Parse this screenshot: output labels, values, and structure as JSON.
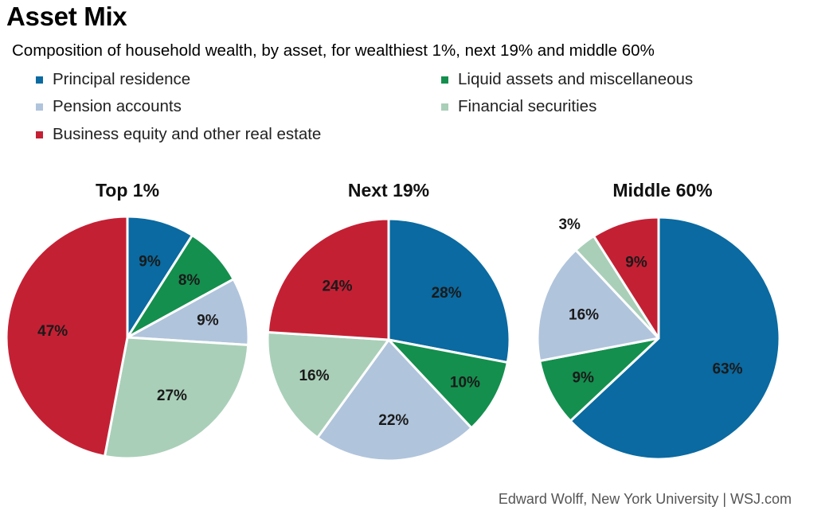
{
  "title": "Asset Mix",
  "subtitle": "Composition of household wealth, by asset, for wealthiest 1%, next 19% and middle 60%",
  "source": "Edward Wolff, New York University  |  WSJ.com",
  "legend": [
    {
      "label": "Principal residence",
      "color": "#0a6aa1"
    },
    {
      "label": "Liquid assets and miscellaneous",
      "color": "#148f4e"
    },
    {
      "label": "Pension accounts",
      "color": "#b0c4dc"
    },
    {
      "label": "Financial securities",
      "color": "#a9cfb8"
    },
    {
      "label": "Business equity and other real estate",
      "color": "#c42034"
    }
  ],
  "chart_data": [
    {
      "type": "pie",
      "title": "Top 1%",
      "categories": [
        "Principal residence",
        "Liquid assets and miscellaneous",
        "Pension accounts",
        "Financial securities",
        "Business equity and other real estate"
      ],
      "values": [
        9,
        8,
        9,
        27,
        47
      ],
      "labels": [
        "9%",
        "8%",
        "9%",
        "27%",
        "47%"
      ]
    },
    {
      "type": "pie",
      "title": "Next 19%",
      "categories": [
        "Principal residence",
        "Liquid assets and miscellaneous",
        "Pension accounts",
        "Financial securities",
        "Business equity and other real estate"
      ],
      "values": [
        28,
        10,
        22,
        16,
        24
      ],
      "labels": [
        "28%",
        "10%",
        "22%",
        "16%",
        "24%"
      ]
    },
    {
      "type": "pie",
      "title": "Middle 60%",
      "categories": [
        "Principal residence",
        "Liquid assets and miscellaneous",
        "Pension accounts",
        "Financial securities",
        "Business equity and other real estate"
      ],
      "values": [
        63,
        9,
        16,
        3,
        9
      ],
      "labels": [
        "63%",
        "9%",
        "16%",
        "3%",
        "9%"
      ]
    }
  ]
}
